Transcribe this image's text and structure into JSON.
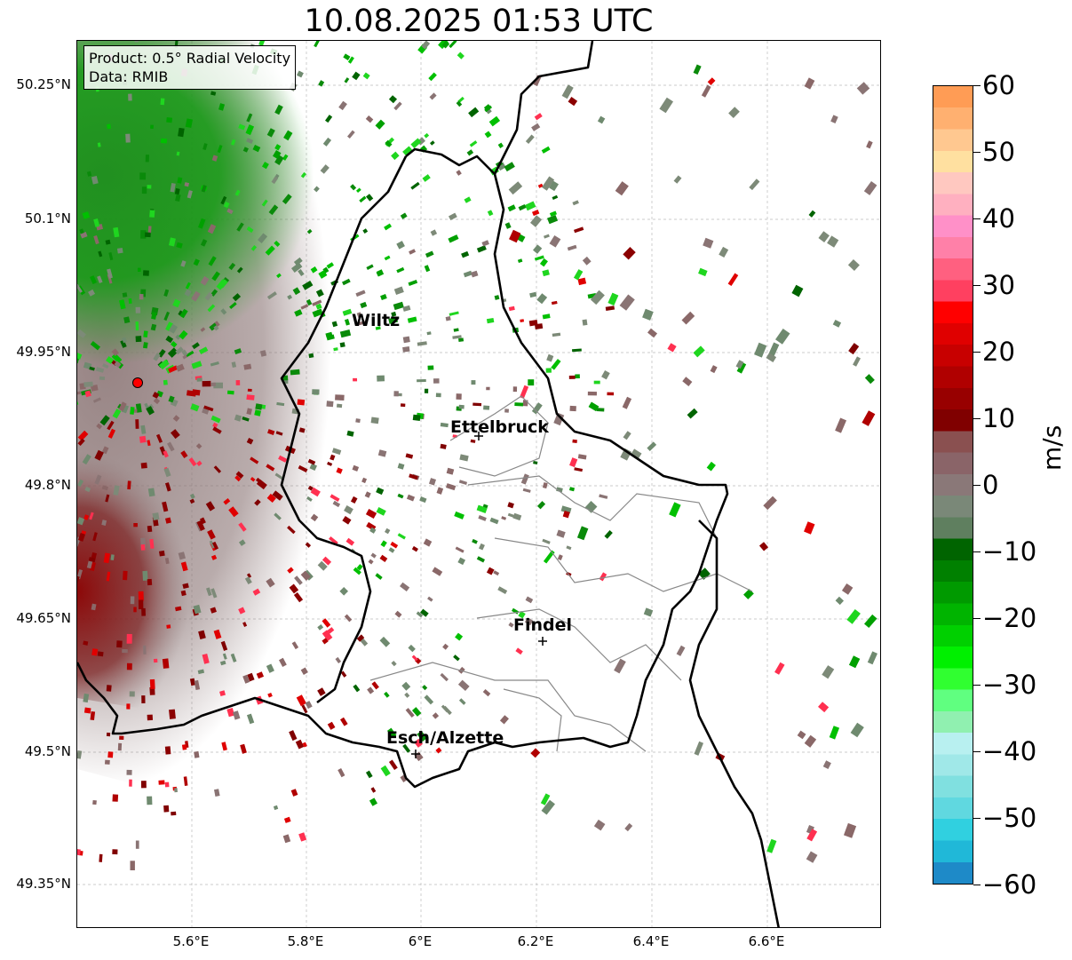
{
  "title": "10.08.2025 01:53 UTC",
  "info": {
    "product": "Product: 0.5° Radial Velocity",
    "data": "Data: RMIB"
  },
  "lat_ticks": [
    "50.25°N",
    "50.1°N",
    "49.95°N",
    "49.8°N",
    "49.65°N",
    "49.5°N",
    "49.35°N"
  ],
  "lon_ticks": [
    "5.6°E",
    "5.8°E",
    "6°E",
    "6.2°E",
    "6.4°E",
    "6.6°E"
  ],
  "cities": [
    {
      "name": "Wiltz"
    },
    {
      "name": "Ettelbruck"
    },
    {
      "name": "Findel"
    },
    {
      "name": "Esch/Alzette"
    }
  ],
  "colorbar": {
    "unit": "m/s",
    "ticks": [
      "60",
      "50",
      "40",
      "30",
      "20",
      "10",
      "0",
      "−10",
      "−20",
      "−30",
      "−40",
      "−50",
      "−60"
    ],
    "min": -60,
    "max": 60
  },
  "colors": {
    "approaching_green": "#0a8a0a",
    "receding_red": "#8b0000",
    "near_zero": "#8a7474",
    "border": "#000000",
    "radar_marker": "#ff0000"
  }
}
